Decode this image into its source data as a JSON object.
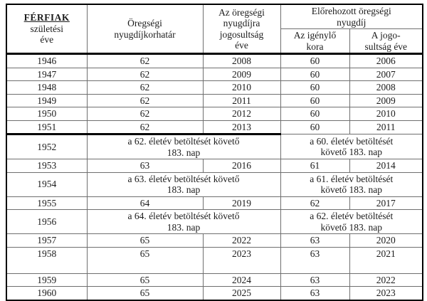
{
  "colors": {
    "background": "#ffffff",
    "text": "#1c1c1c",
    "outer_border": "#000000",
    "inner_border": "#6f6f6f"
  },
  "table": {
    "header": {
      "col1_title": "FÉRFIAK",
      "col1_sub": "születési\néve",
      "col2": "Öregségi\nnyugdíjkorhatár",
      "col3": "Az öregségi\nnyugdíjra\njogosultság\néve",
      "group": "Előrehozott öregségi\nnyugdíj",
      "sub1": "Az igénylő\nkora",
      "sub2": "A jogo-\nsultság éve"
    },
    "rows": [
      {
        "year": "1946",
        "age": "62",
        "eligible_year": "2008",
        "early_age": "60",
        "early_year": "2006"
      },
      {
        "year": "1947",
        "age": "62",
        "eligible_year": "2009",
        "early_age": "60",
        "early_year": "2007"
      },
      {
        "year": "1948",
        "age": "62",
        "eligible_year": "2010",
        "early_age": "60",
        "early_year": "2008"
      },
      {
        "year": "1949",
        "age": "62",
        "eligible_year": "2011",
        "early_age": "60",
        "early_year": "2009"
      },
      {
        "year": "1950",
        "age": "62",
        "eligible_year": "2012",
        "early_age": "60",
        "early_year": "2010"
      },
      {
        "year": "1951",
        "age": "62",
        "eligible_year": "2013",
        "early_age": "60",
        "early_year": "2011"
      },
      {
        "year": "1952",
        "left_merged": "a 62. életév betöltését követő\n183. nap",
        "right_merged": "a 60. életév betöltését\nkövető 183. nap"
      },
      {
        "year": "1953",
        "age": "63",
        "eligible_year": "2016",
        "early_age": "61",
        "early_year": "2014"
      },
      {
        "year": "1954",
        "left_merged": "a 63. életév betöltését követő\n183. nap",
        "right_merged": "a 61. életév betöltését\nkövető 183. nap"
      },
      {
        "year": "1955",
        "age": "64",
        "eligible_year": "2019",
        "early_age": "62",
        "early_year": "2017"
      },
      {
        "year": "1956",
        "left_merged": "a 64. életév betöltését követő\n183. nap",
        "right_merged": "a 62. életév betöltését\nkövető 183. nap"
      },
      {
        "year": "1957",
        "age": "65",
        "eligible_year": "2022",
        "early_age": "63",
        "early_year": "2020"
      },
      {
        "year": "1958",
        "age": "65",
        "eligible_year": "2023",
        "early_age": "63",
        "early_year": "2021"
      },
      {
        "year": "1959",
        "age": "65",
        "eligible_year": "2024",
        "early_age": "63",
        "early_year": "2022"
      },
      {
        "year": "1960",
        "age": "65",
        "eligible_year": "2025",
        "early_age": "63",
        "early_year": "2023"
      }
    ]
  }
}
